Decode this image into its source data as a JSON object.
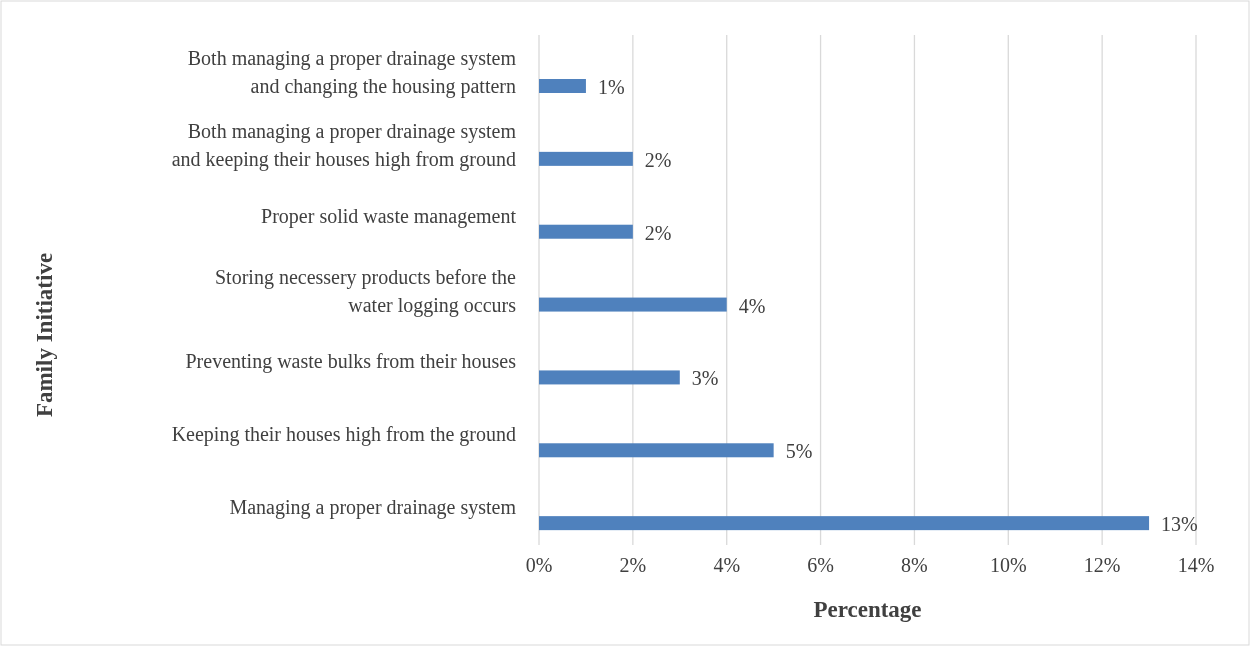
{
  "chart_data": {
    "type": "bar",
    "orientation": "horizontal",
    "xlabel": "Percentage",
    "ylabel": "Family Initiative",
    "categories": [
      "Both managing a proper drainage system and changing the housing pattern",
      "Both managing a proper drainage system and keeping their houses high from ground",
      "Proper solid waste management",
      "Storing necessery products before the water logging occurs",
      "Preventing waste bulks from their houses",
      "Keeping their houses high from the ground",
      "Managing a proper drainage system"
    ],
    "values": [
      1,
      2,
      2,
      4,
      3,
      5,
      13
    ],
    "value_labels": [
      "1%",
      "2%",
      "2%",
      "4%",
      "3%",
      "5%",
      "13%"
    ],
    "color": "#4f81bd",
    "xlim": [
      0,
      14
    ],
    "xticks": [
      {
        "value": 0,
        "label": "0%"
      },
      {
        "value": 2,
        "label": "2%"
      },
      {
        "value": 4,
        "label": "4%"
      },
      {
        "value": 6,
        "label": "6%"
      },
      {
        "value": 8,
        "label": "8%"
      },
      {
        "value": 10,
        "label": "10%"
      },
      {
        "value": 12,
        "label": "12%"
      },
      {
        "value": 14,
        "label": "14%"
      }
    ],
    "grid": "x"
  }
}
